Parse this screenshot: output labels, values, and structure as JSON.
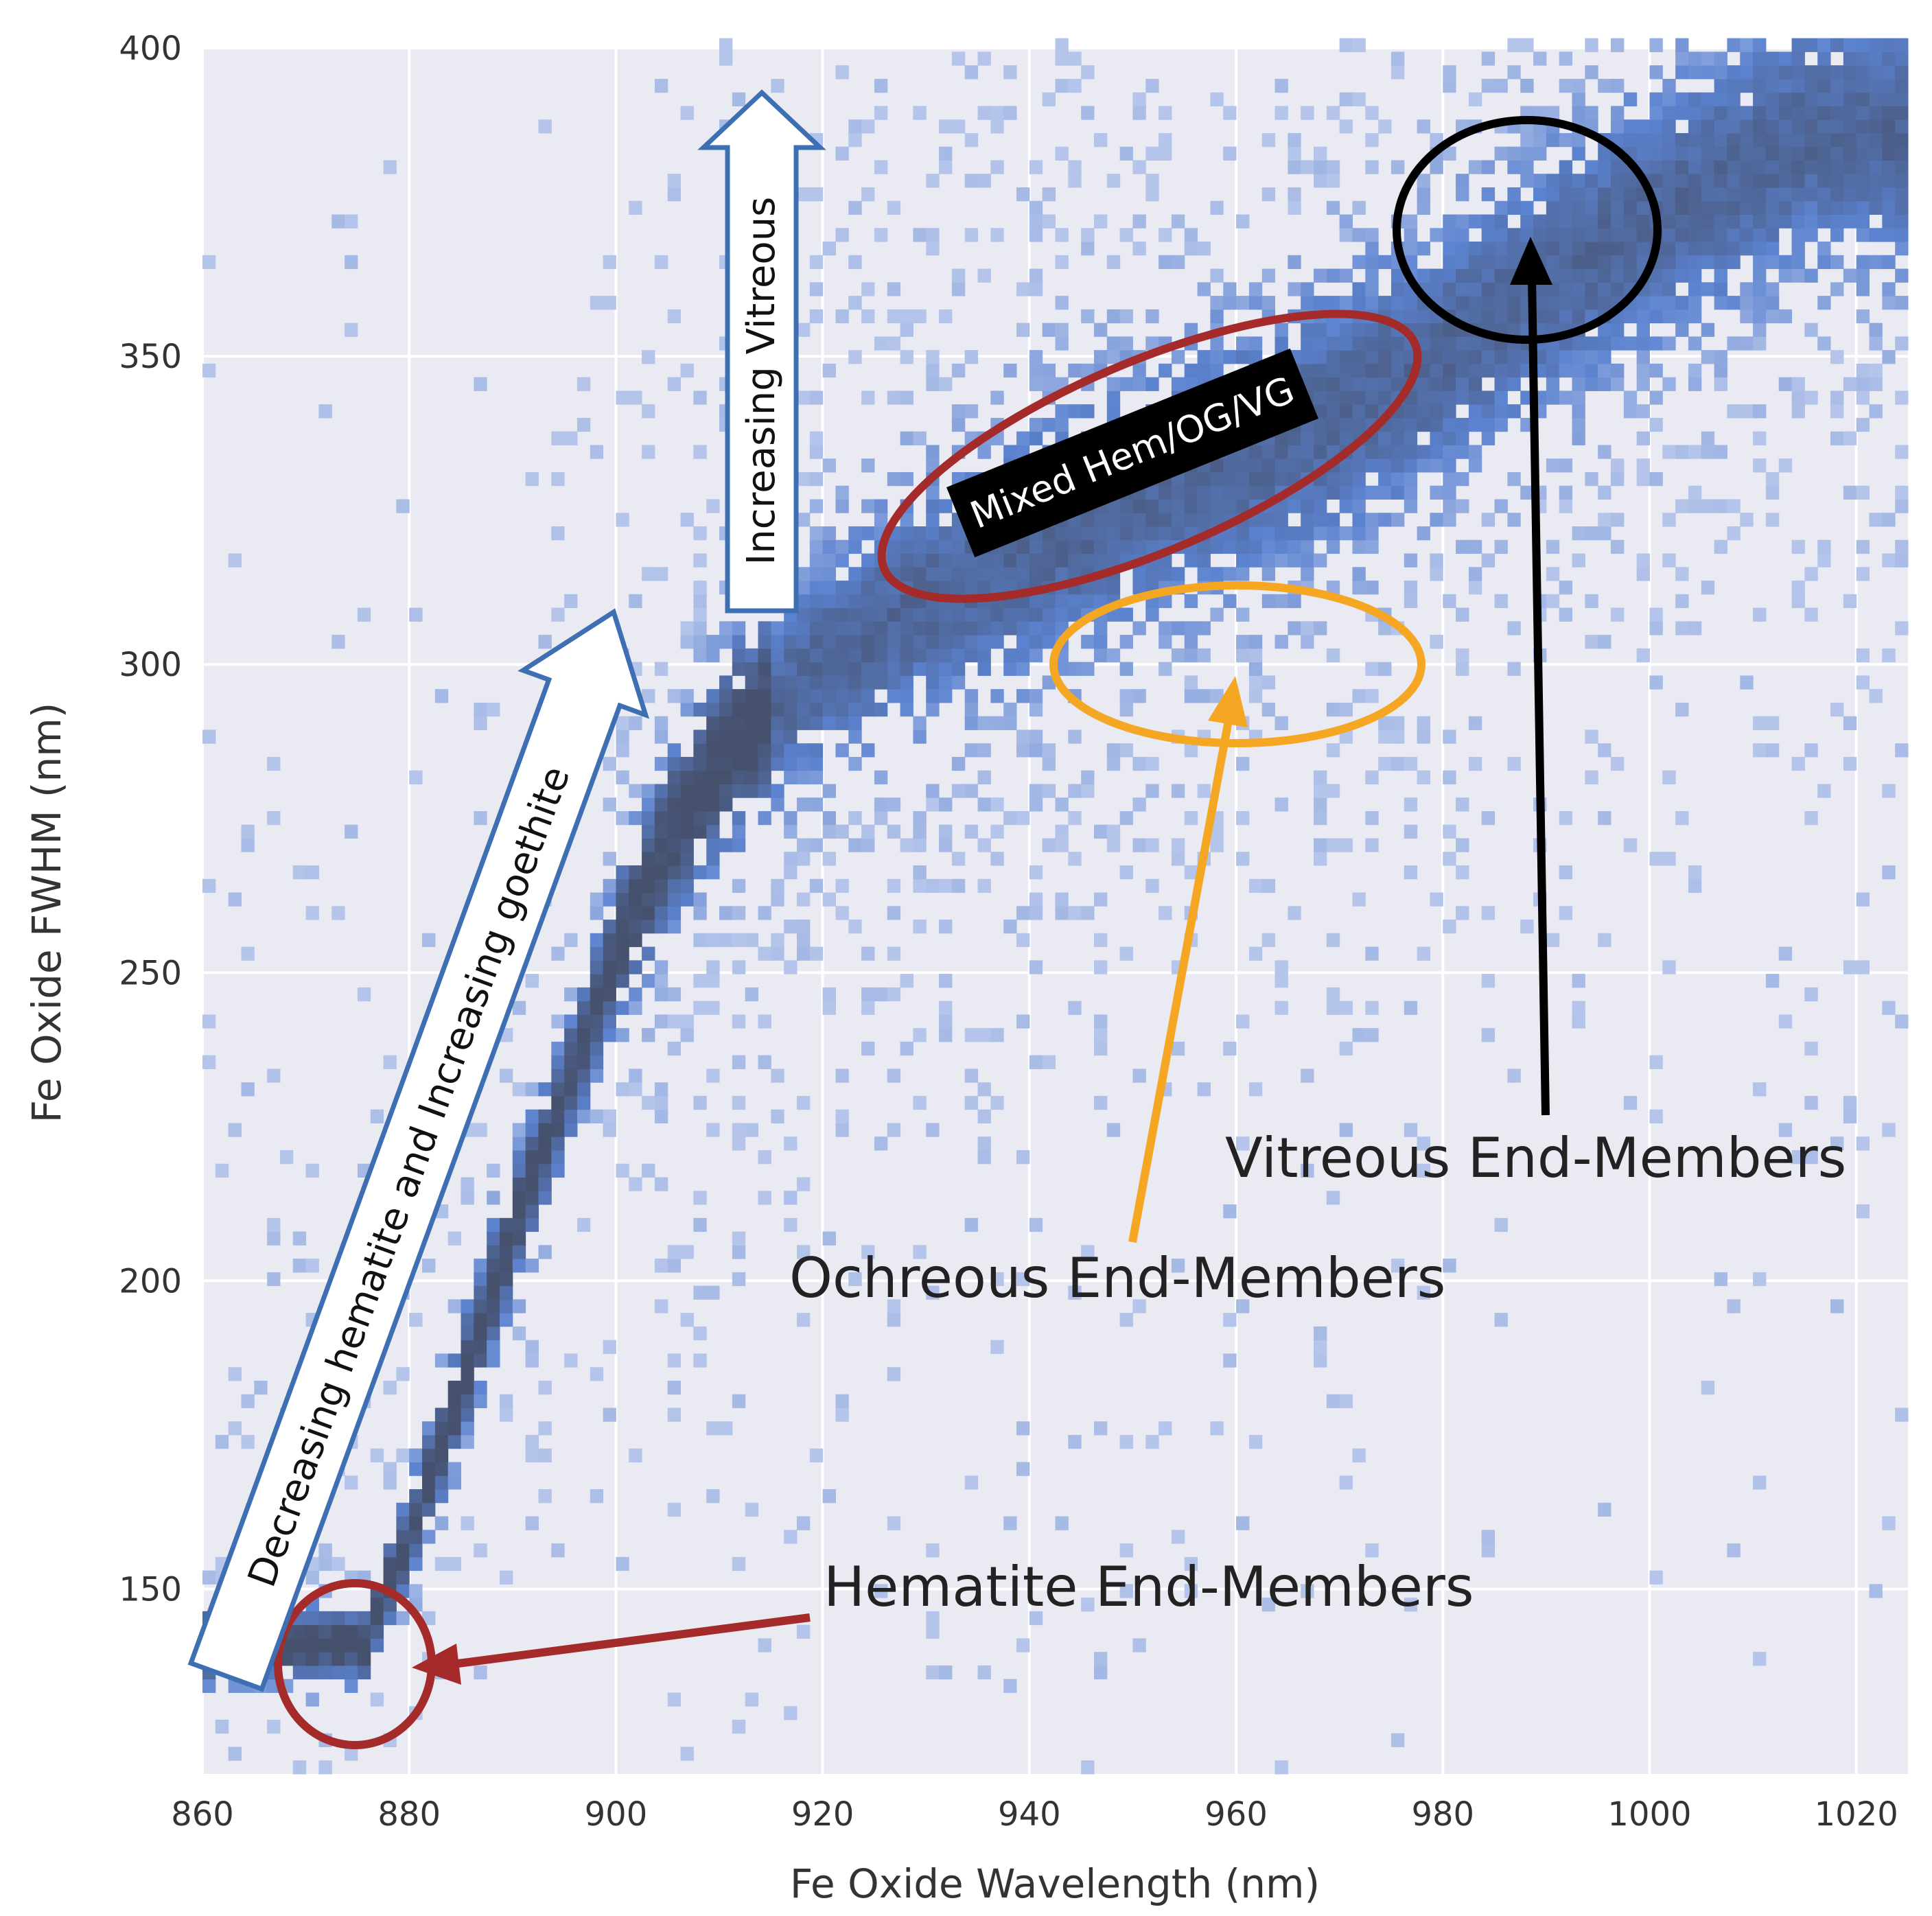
{
  "chart_data": {
    "type": "heatmap",
    "xlabel": "Fe Oxide Wavelength (nm)",
    "ylabel": "Fe Oxide FWHM (nm)",
    "xlim": [
      860,
      1025
    ],
    "ylim": [
      120,
      400
    ],
    "xticks": [
      "860",
      "880",
      "900",
      "920",
      "940",
      "960",
      "980",
      "1000",
      "1020"
    ],
    "yticks": [
      "150",
      "200",
      "250",
      "300",
      "350",
      "400"
    ],
    "grid": true,
    "colors": {
      "background": "#eaeaf2",
      "light": "#b4c4ea",
      "mid": "#5b82cf",
      "dark": "#46516e"
    },
    "density_ridge": [
      {
        "x": 875,
        "y": 140,
        "w": 3
      },
      {
        "x": 880,
        "y": 160,
        "w": 4
      },
      {
        "x": 885,
        "y": 185,
        "w": 5
      },
      {
        "x": 890,
        "y": 210,
        "w": 5
      },
      {
        "x": 895,
        "y": 232,
        "w": 5
      },
      {
        "x": 900,
        "y": 255,
        "w": 6
      },
      {
        "x": 905,
        "y": 272,
        "w": 7
      },
      {
        "x": 910,
        "y": 285,
        "w": 8
      },
      {
        "x": 920,
        "y": 300,
        "w": 9
      },
      {
        "x": 930,
        "y": 310,
        "w": 10
      },
      {
        "x": 940,
        "y": 318,
        "w": 11
      },
      {
        "x": 950,
        "y": 326,
        "w": 11
      },
      {
        "x": 960,
        "y": 333,
        "w": 11
      },
      {
        "x": 970,
        "y": 340,
        "w": 11
      },
      {
        "x": 980,
        "y": 350,
        "w": 11
      },
      {
        "x": 990,
        "y": 362,
        "w": 11
      },
      {
        "x": 1000,
        "y": 372,
        "w": 11
      },
      {
        "x": 1015,
        "y": 385,
        "w": 11
      }
    ],
    "annotations": {
      "hematite": {
        "text": "Hematite End-Members",
        "ellipse": {
          "cx": 875,
          "cy": 139,
          "rx": 4,
          "ry": 10,
          "color": "#a52a2a"
        }
      },
      "ochreous": {
        "text": "Ochreous End-Members",
        "ellipse": {
          "cx": 960,
          "cy": 300,
          "rx": 9,
          "ry": 13,
          "color": "#f5a623"
        }
      },
      "vitreous": {
        "text": "Vitreous End-Members",
        "ellipse": {
          "cx": 988,
          "cy": 370,
          "rx": 6.5,
          "ry": 18,
          "color": "#000000"
        }
      },
      "mixed": {
        "text": "Mixed Hem/OG/VG"
      },
      "increasing_vitreous": {
        "text": "Increasing Vitreous"
      },
      "decreasing_hematite": {
        "text": "Decreasing hematite and Increasing goethite"
      }
    }
  }
}
